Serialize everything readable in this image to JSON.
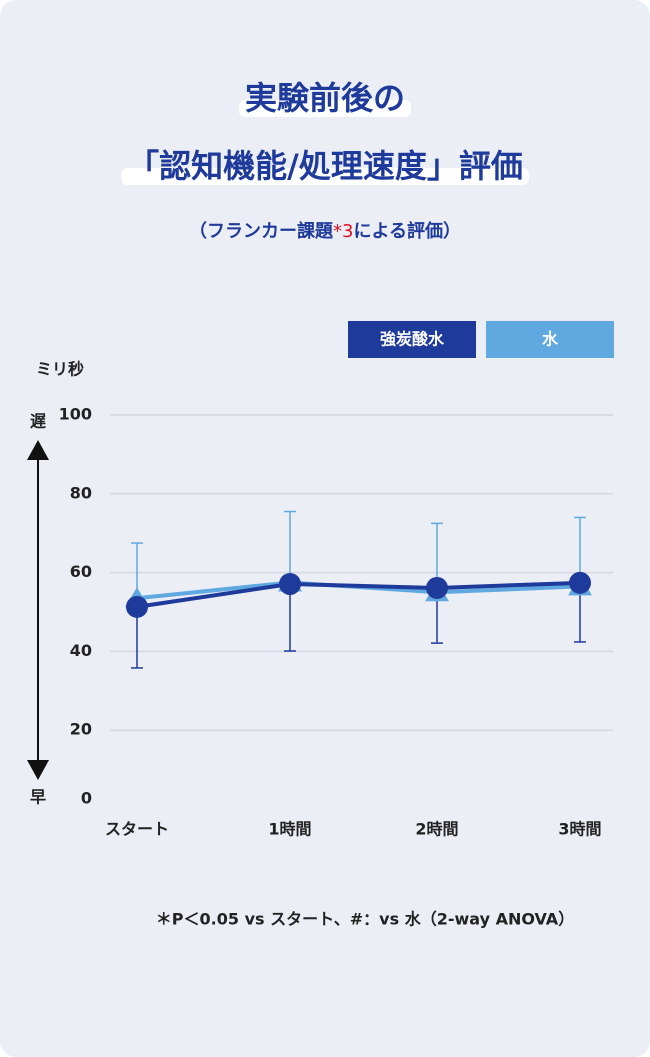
{
  "chart_data": {
    "type": "line",
    "title_lines": [
      "実験前後の",
      "「認知機能/処理速度」評価"
    ],
    "subtitle_parts": [
      "（フランカー課題",
      "*3",
      "による評価）"
    ],
    "y_unit": "ミリ秒",
    "y_top_label": "遅",
    "y_bottom_label": "早",
    "categories": [
      "スタート",
      "1時間",
      "2時間",
      "3時間"
    ],
    "series": [
      {
        "name": "強炭酸水",
        "color": "#1e3a9a",
        "marker": "circle",
        "error_direction": "down",
        "values": [
          51.3,
          57.1,
          56.1,
          57.4
        ],
        "errors": [
          15.5,
          17,
          14,
          15
        ]
      },
      {
        "name": "水",
        "color": "#5fa8e0",
        "marker": "triangle",
        "error_direction": "up",
        "values": [
          53.5,
          57.5,
          55,
          56.5
        ],
        "errors": [
          14,
          18,
          17.5,
          17.5
        ]
      }
    ],
    "ylim": [
      0,
      100
    ],
    "yticks": [
      0,
      20,
      40,
      60,
      80,
      100
    ],
    "grid": true,
    "footnote": "＊P＜0.05 vs スタート、#：vs 水（2-way ANOVA）"
  }
}
